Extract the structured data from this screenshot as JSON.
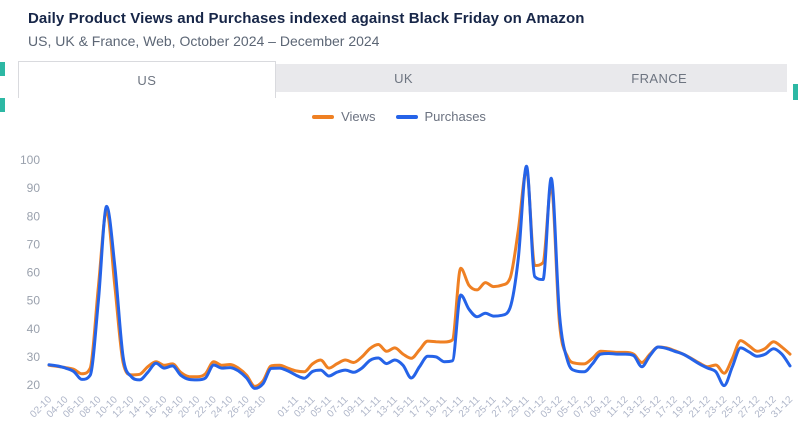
{
  "header": {
    "title": "Daily Product Views and Purchases indexed against Black Friday on Amazon",
    "subtitle": "US, UK & France, Web, October 2024 – December 2024"
  },
  "tabs": [
    {
      "label": "US",
      "active": true
    },
    {
      "label": "UK",
      "active": false
    },
    {
      "label": "FRANCE",
      "active": false
    }
  ],
  "legend": [
    {
      "label": "Views",
      "color": "#EF8023"
    },
    {
      "label": "Purchases",
      "color": "#2563E8"
    }
  ],
  "colors": {
    "title": "#172648",
    "subtitle": "#5C6675",
    "tab_bar": "#E9E9EC",
    "active_tab_border": "#D9DADE",
    "edge_accent": "#2DB8A4",
    "y_tick_text": "#9AA1AD",
    "x_tick_text": "#AFB6C9"
  },
  "chart_data": {
    "type": "line",
    "title": "Daily Product Views and Purchases indexed against Black Friday on Amazon",
    "xlabel": "",
    "ylabel": "",
    "grid": false,
    "legend_position": "top-center",
    "ylim": [
      20,
      100
    ],
    "y_ticks": [
      20,
      30,
      40,
      50,
      60,
      70,
      80,
      90,
      100
    ],
    "num_points": 91,
    "x_start": "02-10",
    "x_end": "31-12",
    "x_tick_labels": [
      "02-10",
      "04-10",
      "06-10",
      "08-10",
      "10-10",
      "12-10",
      "14-10",
      "16-10",
      "18-10",
      "20-10",
      "22-10",
      "24-10",
      "26-10",
      "28-10",
      "01-11",
      "03-11",
      "05-11",
      "07-11",
      "09-11",
      "11-11",
      "13-11",
      "15-11",
      "17-11",
      "19-11",
      "21-11",
      "23-11",
      "25-11",
      "27-11",
      "29-11",
      "01-12",
      "03-12",
      "05-12",
      "07-12",
      "09-12",
      "11-12",
      "13-12",
      "15-12",
      "17-12",
      "19-12",
      "21-12",
      "23-12",
      "25-12",
      "27-12",
      "29-12",
      "31-12"
    ],
    "x_tick_day_index": [
      0,
      2,
      4,
      6,
      8,
      10,
      12,
      14,
      16,
      18,
      20,
      22,
      24,
      26,
      30,
      32,
      34,
      36,
      38,
      40,
      42,
      44,
      46,
      48,
      50,
      52,
      54,
      56,
      58,
      60,
      62,
      64,
      66,
      68,
      70,
      72,
      74,
      76,
      78,
      80,
      82,
      84,
      86,
      88,
      90
    ],
    "series": [
      {
        "name": "Views",
        "color": "#EF8023",
        "values": [
          27.0,
          26.6,
          26.2,
          25.6,
          24.0,
          26.0,
          55.0,
          82.0,
          55.0,
          28.0,
          23.6,
          23.8,
          26.5,
          28.3,
          27.0,
          27.5,
          24.5,
          23.0,
          22.9,
          24.0,
          28.3,
          27.0,
          27.3,
          26.0,
          23.5,
          19.5,
          21.5,
          26.8,
          27.0,
          26.0,
          25.0,
          24.7,
          27.5,
          28.9,
          26.0,
          27.6,
          28.9,
          28.0,
          30.0,
          33.0,
          34.4,
          32.0,
          33.2,
          31.0,
          29.5,
          32.5,
          35.6,
          35.4,
          35.3,
          36.0,
          61.5,
          55.5,
          53.8,
          56.4,
          55.0,
          55.5,
          58.0,
          75.0,
          96.5,
          62.5,
          63.5,
          91.0,
          42.0,
          30.0,
          27.7,
          27.5,
          29.5,
          32.0,
          31.8,
          31.6,
          31.6,
          31.0,
          28.0,
          31.0,
          33.5,
          33.2,
          32.2,
          31.0,
          29.5,
          27.8,
          26.5,
          27.1,
          24.2,
          29.5,
          35.8,
          34.0,
          32.0,
          33.0,
          35.4,
          33.5,
          31.0
        ]
      },
      {
        "name": "Purchases",
        "color": "#2563E8",
        "values": [
          27.2,
          26.8,
          26.0,
          24.8,
          22.0,
          23.5,
          50.0,
          83.5,
          62.0,
          30.0,
          23.0,
          21.8,
          24.5,
          27.7,
          26.0,
          26.8,
          23.5,
          22.0,
          21.8,
          22.5,
          27.1,
          26.0,
          26.2,
          25.0,
          22.5,
          18.8,
          20.5,
          25.9,
          26.0,
          25.0,
          23.5,
          22.4,
          24.8,
          25.3,
          23.2,
          24.6,
          25.3,
          24.5,
          26.0,
          28.8,
          29.6,
          27.6,
          28.9,
          27.0,
          22.5,
          26.5,
          30.2,
          30.0,
          28.3,
          28.6,
          52.0,
          47.0,
          44.3,
          45.5,
          44.5,
          44.8,
          47.5,
          65.0,
          97.8,
          58.5,
          57.5,
          93.5,
          45.0,
          28.5,
          25.0,
          24.7,
          27.5,
          31.0,
          31.2,
          31.0,
          31.0,
          30.5,
          26.5,
          30.5,
          33.5,
          33.0,
          32.0,
          31.0,
          29.3,
          27.5,
          26.0,
          24.7,
          19.8,
          26.5,
          33.2,
          31.8,
          30.2,
          31.0,
          32.9,
          31.0,
          26.8
        ]
      }
    ]
  }
}
